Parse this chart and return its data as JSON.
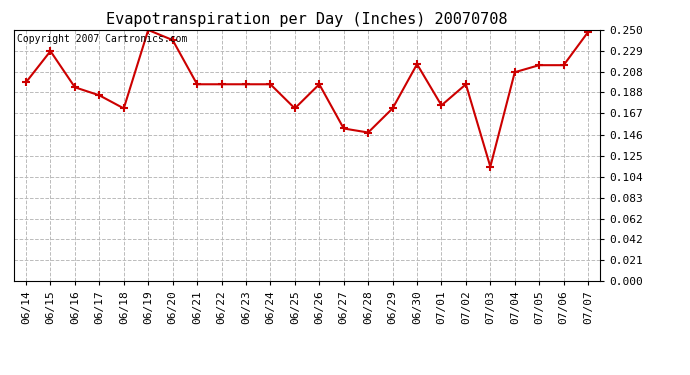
{
  "title": "Evapotranspiration per Day (Inches) 20070708",
  "copyright_text": "Copyright 2007 Cartronics.com",
  "x_labels": [
    "06/14",
    "06/15",
    "06/16",
    "06/17",
    "06/18",
    "06/19",
    "06/20",
    "06/21",
    "06/22",
    "06/23",
    "06/24",
    "06/25",
    "06/26",
    "06/27",
    "06/28",
    "06/29",
    "06/30",
    "07/01",
    "07/02",
    "07/03",
    "07/04",
    "07/05",
    "07/06",
    "07/07"
  ],
  "y_values": [
    0.198,
    0.229,
    0.193,
    0.185,
    0.172,
    0.25,
    0.24,
    0.196,
    0.196,
    0.196,
    0.196,
    0.172,
    0.196,
    0.152,
    0.148,
    0.172,
    0.216,
    0.175,
    0.196,
    0.114,
    0.208,
    0.215,
    0.215,
    0.248
  ],
  "line_color": "#cc0000",
  "marker": "+",
  "marker_size": 6,
  "marker_linewidth": 1.5,
  "line_width": 1.5,
  "ylim": [
    0.0,
    0.25
  ],
  "yticks": [
    0.0,
    0.021,
    0.042,
    0.062,
    0.083,
    0.104,
    0.125,
    0.146,
    0.167,
    0.188,
    0.208,
    0.229,
    0.25
  ],
  "bg_color": "#ffffff",
  "plot_bg_color": "#ffffff",
  "grid_color": "#bbbbbb",
  "title_fontsize": 11,
  "tick_fontsize": 8,
  "copyright_fontsize": 7,
  "figwidth": 6.9,
  "figheight": 3.75,
  "dpi": 100
}
